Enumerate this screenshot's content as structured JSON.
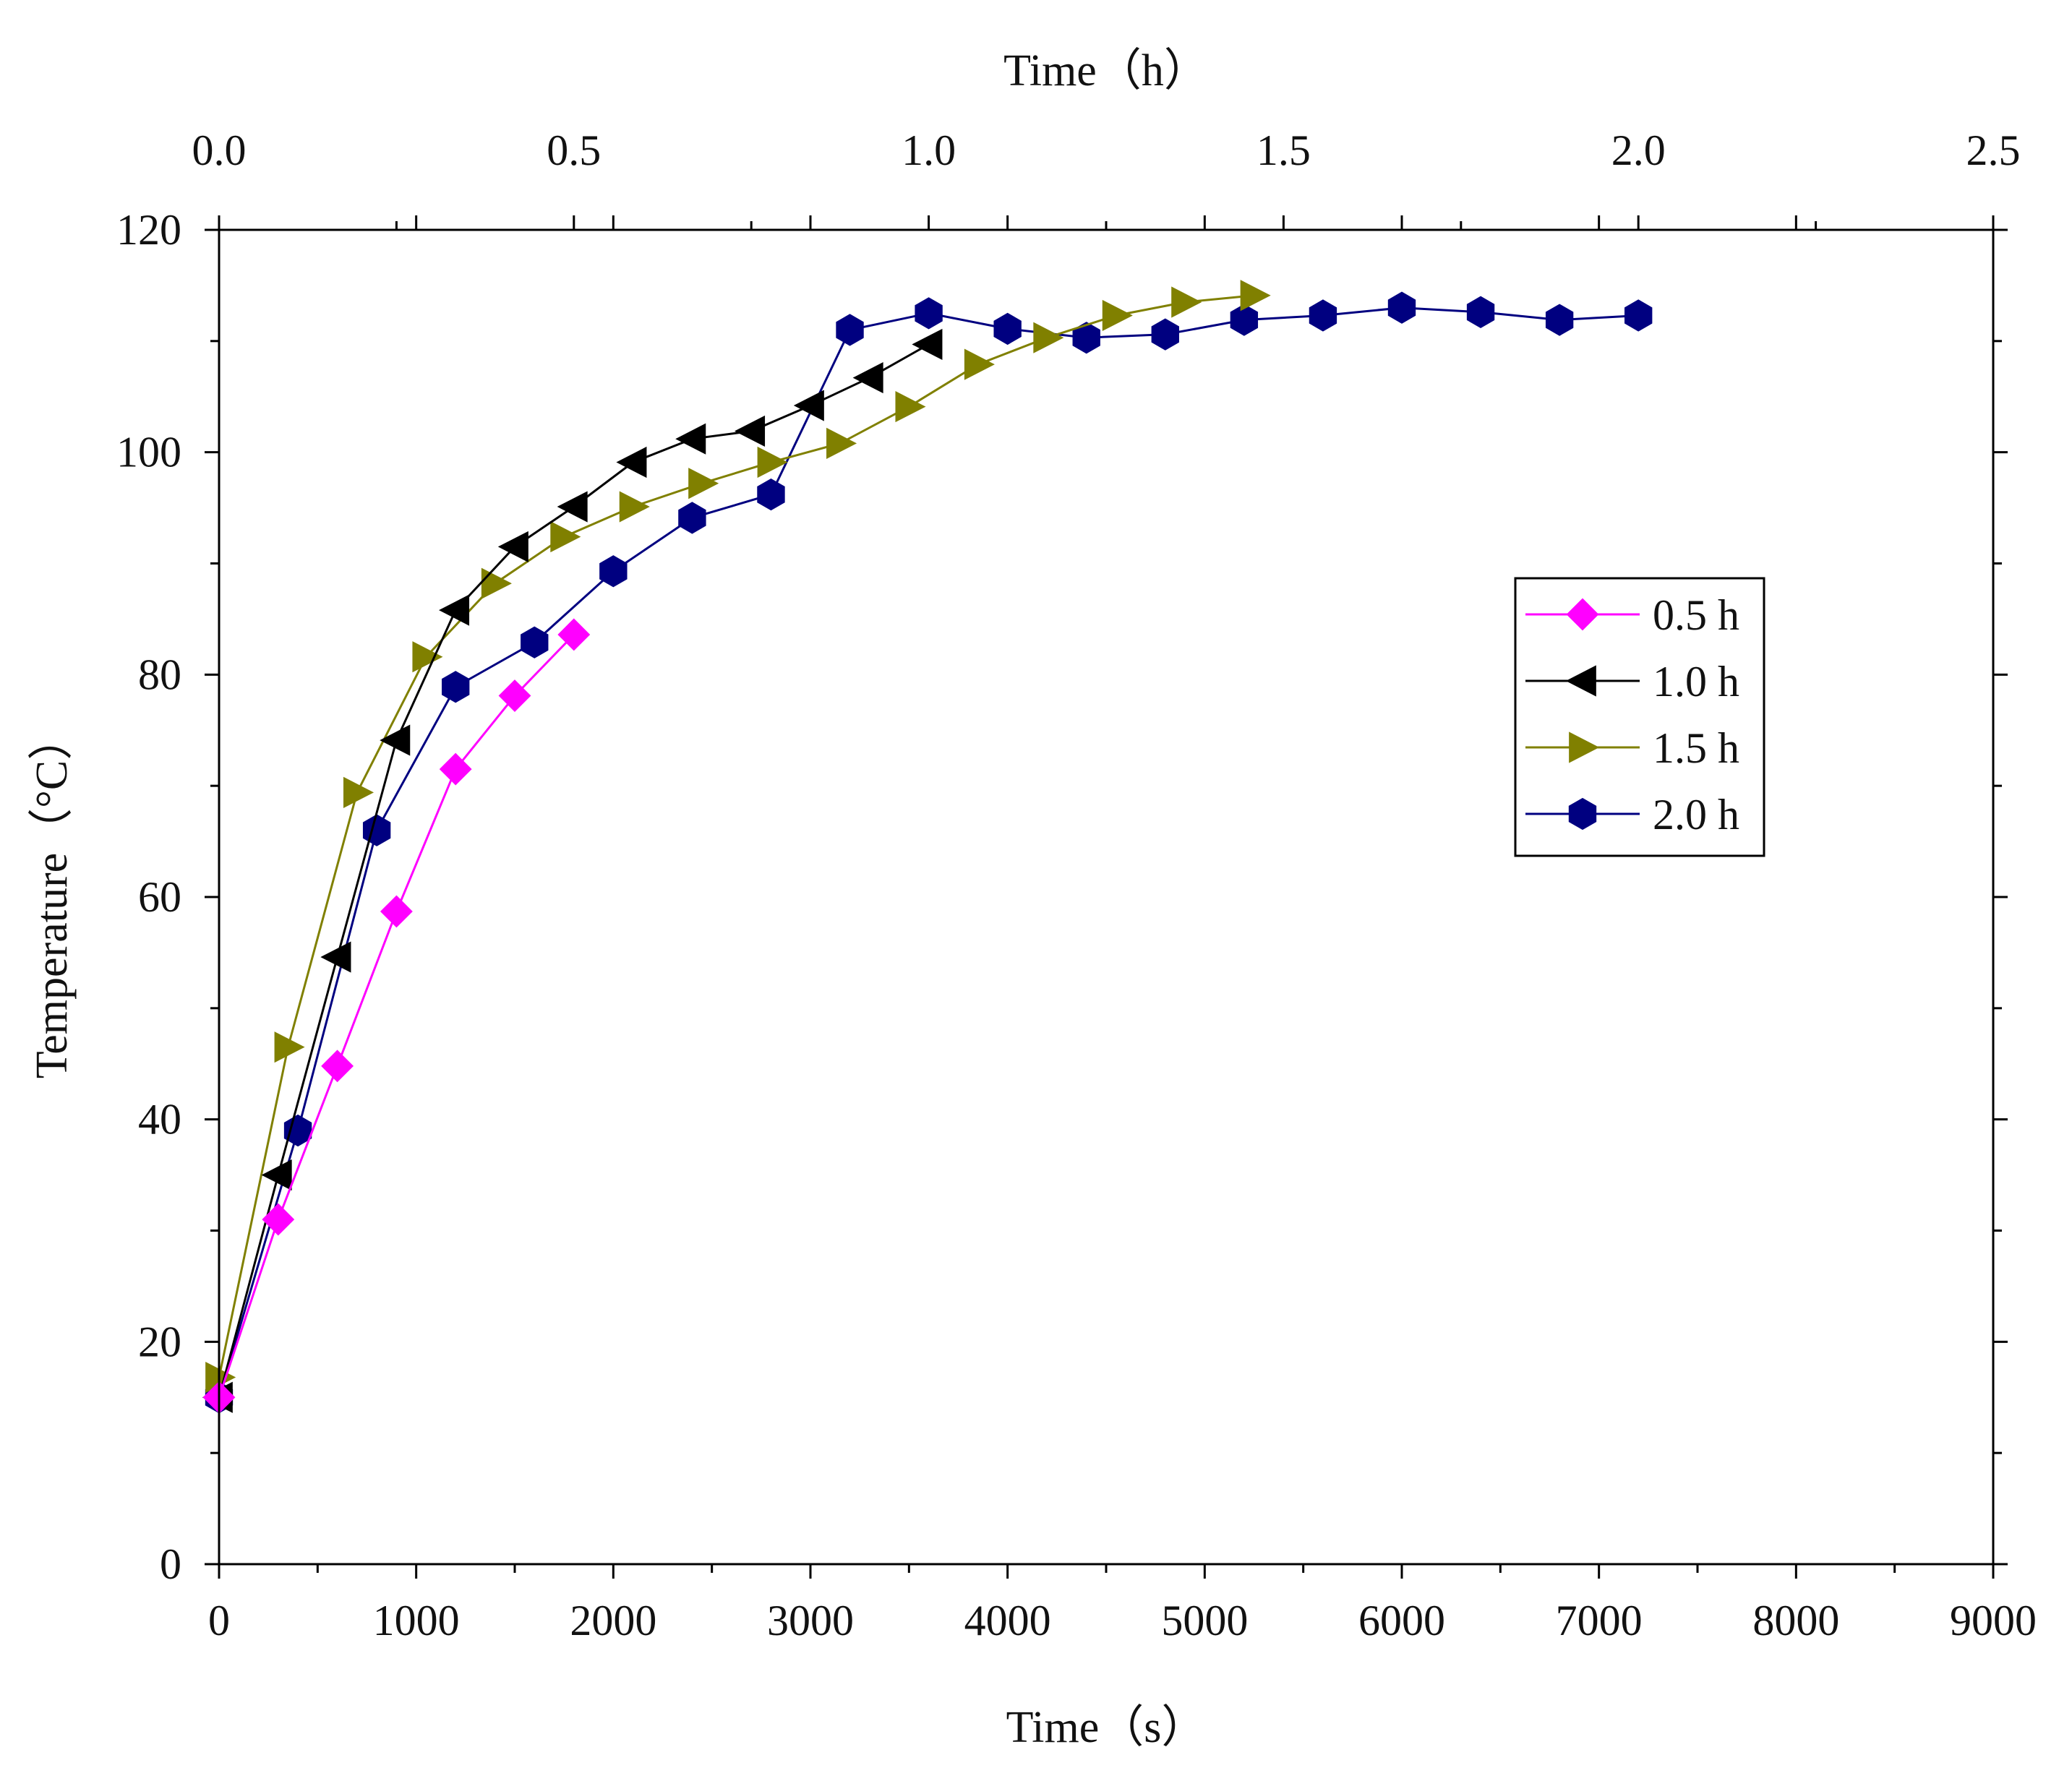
{
  "chart_data": {
    "type": "line",
    "title": "",
    "xlabel": "Time（s）",
    "x2label": "Time（h）",
    "ylabel": "Temperature（°C）",
    "xlim": [
      0,
      9000
    ],
    "x2lim": [
      0,
      2.5
    ],
    "ylim": [
      0,
      120
    ],
    "xticks": [
      0,
      1000,
      2000,
      3000,
      4000,
      5000,
      6000,
      7000,
      8000,
      9000
    ],
    "xtick_labels": [
      "0",
      "1000",
      "2000",
      "3000",
      "4000",
      "5000",
      "6000",
      "7000",
      "8000",
      "9000"
    ],
    "x2ticks": [
      0,
      0.5,
      1.0,
      1.5,
      2.0,
      2.5
    ],
    "x2tick_labels": [
      "0.0",
      "0.5",
      "1.0",
      "1.5",
      "2.0",
      "2.5"
    ],
    "yticks": [
      0,
      20,
      40,
      60,
      80,
      100,
      120
    ],
    "ytick_labels": [
      "0",
      "20",
      "40",
      "60",
      "80",
      "100",
      "120"
    ],
    "grid": false,
    "legend_position": "right-middle",
    "series": [
      {
        "name": "0.5 h",
        "color": "#ff00ff",
        "marker": "diamond",
        "x": [
          0,
          300,
          600,
          900,
          1200,
          1500,
          1800
        ],
        "y": [
          15,
          31,
          44.8,
          58.7,
          71.5,
          78.1,
          83.6
        ]
      },
      {
        "name": "1.0 h",
        "color": "#000000",
        "marker": "triangle-left",
        "x": [
          0,
          300,
          600,
          900,
          1200,
          1500,
          1800,
          2100,
          2400,
          2700,
          3000,
          3300,
          3600
        ],
        "y": [
          15,
          35,
          54.6,
          74.1,
          85.8,
          91.5,
          95.1,
          99.1,
          101.2,
          101.9,
          104.2,
          106.7,
          109.7
        ]
      },
      {
        "name": "1.5 h",
        "color": "#808000",
        "marker": "triangle-right",
        "x": [
          0,
          350,
          700,
          1050,
          1400,
          1750,
          2100,
          2450,
          2800,
          3150,
          3500,
          3850,
          4200,
          4550,
          4900,
          5250
        ],
        "y": [
          16.8,
          46.5,
          69.4,
          81.6,
          88.2,
          92.4,
          95.1,
          97.2,
          99.1,
          100.8,
          104.1,
          107.9,
          110.3,
          112.3,
          113.5,
          114.1
        ]
      },
      {
        "name": "2.0 h",
        "color": "#000080",
        "marker": "hexagon",
        "x": [
          0,
          400,
          800,
          1200,
          1600,
          2000,
          2400,
          2800,
          3200,
          3600,
          4000,
          4400,
          4800,
          5200,
          5600,
          6000,
          6400,
          6800,
          7200
        ],
        "y": [
          15,
          39,
          66,
          78.9,
          82.9,
          89.3,
          94.1,
          96.2,
          111,
          112.5,
          111.1,
          110.3,
          110.6,
          111.9,
          112.3,
          113,
          112.6,
          111.9,
          112.3
        ]
      }
    ]
  }
}
